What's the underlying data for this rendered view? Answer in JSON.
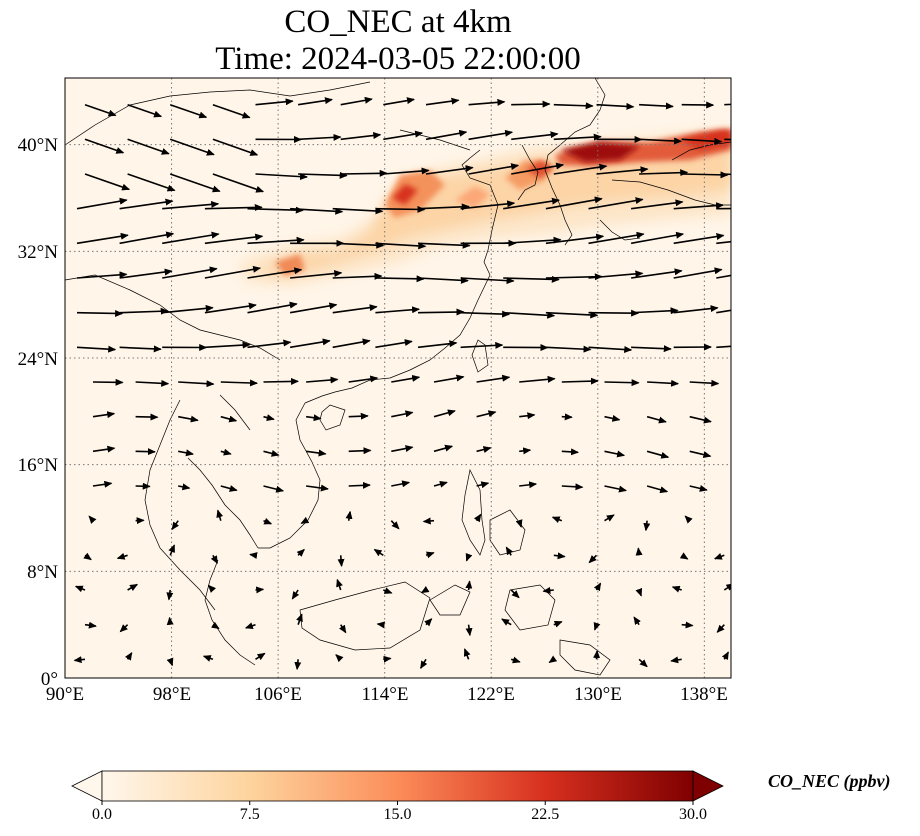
{
  "title": {
    "line1": "CO_NEC at 4km",
    "line2": "Time: 2024-03-05 22:00:00"
  },
  "map": {
    "extent": {
      "lon": [
        90,
        140
      ],
      "lat": [
        0,
        45
      ]
    },
    "projection": "PlateCarree",
    "gridlines": "dotted",
    "lat_ticks": [
      "0°",
      "8°N",
      "16°N",
      "24°N",
      "32°N",
      "40°N"
    ],
    "lon_ticks": [
      "90°E",
      "98°E",
      "106°E",
      "114°E",
      "122°E",
      "130°E",
      "138°E"
    ],
    "field_name": "CO_NEC",
    "overlay": "wind vectors"
  },
  "colorbar": {
    "label": "CO_NEC (ppbv)",
    "ticks": [
      "0.0",
      "7.5",
      "15.0",
      "22.5",
      "30.0"
    ],
    "range": [
      0,
      30
    ],
    "extend": "both",
    "colormap": "OrRd",
    "colors": [
      "#fff7ec",
      "#fdd49e",
      "#fc8d59",
      "#d7301f",
      "#7f0000"
    ]
  }
}
